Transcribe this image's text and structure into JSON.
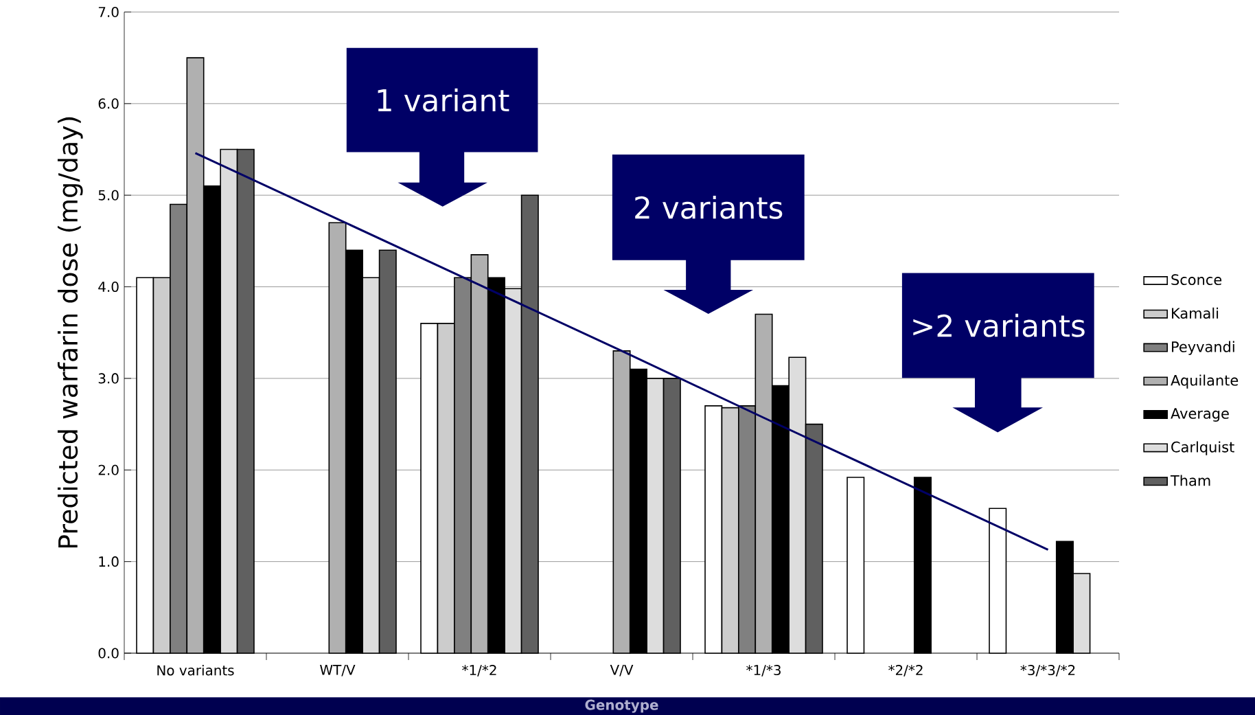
{
  "chart_data": {
    "type": "bar",
    "xlabel": "Genotype",
    "ylabel": "Predicted warfarin dose (mg/day)",
    "categories": [
      "No variants",
      "WT/V",
      "*1/*2",
      "V/V",
      "*1/*3",
      "*2/*2",
      "*3/*3/*2"
    ],
    "series": [
      {
        "name": "Sconce",
        "color": "#ffffff",
        "values": [
          4.1,
          null,
          3.6,
          null,
          2.7,
          1.92,
          1.58
        ]
      },
      {
        "name": "Kamali",
        "color": "#cccccc",
        "values": [
          4.1,
          null,
          3.6,
          null,
          2.68,
          null,
          null
        ]
      },
      {
        "name": "Peyvandi",
        "color": "#808080",
        "values": [
          4.9,
          null,
          4.1,
          null,
          2.7,
          null,
          null
        ]
      },
      {
        "name": "Aquilante",
        "color": "#b0b0b0",
        "values": [
          6.5,
          4.7,
          4.35,
          3.3,
          3.7,
          null,
          null
        ]
      },
      {
        "name": "Average",
        "color": "#000000",
        "values": [
          5.1,
          4.4,
          4.1,
          3.1,
          2.92,
          1.92,
          1.22
        ]
      },
      {
        "name": "Carlquist",
        "color": "#dddddd",
        "values": [
          5.5,
          4.1,
          3.98,
          3.0,
          3.23,
          null,
          0.87
        ]
      },
      {
        "name": "Tham",
        "color": "#606060",
        "values": [
          5.5,
          4.4,
          5.0,
          3.0,
          2.5,
          null,
          null
        ]
      },
      {
        "type": "line",
        "color": "#000066",
        "values": [
          5.46,
          4.74,
          4.02,
          3.3,
          2.57,
          1.85,
          1.13
        ]
      }
    ],
    "ylim": [
      0,
      7
    ],
    "yticks": [
      {
        "value": 0,
        "label": "0.0"
      },
      {
        "value": 1,
        "label": "1.0"
      },
      {
        "value": 2,
        "label": "2.0"
      },
      {
        "value": 3,
        "label": "3.0"
      },
      {
        "value": 4,
        "label": "4.0"
      },
      {
        "value": 5,
        "label": "5.0"
      },
      {
        "value": 6,
        "label": "6.0"
      },
      {
        "value": 7,
        "label": "7.0"
      }
    ],
    "grid": "y",
    "legend": "right",
    "annotations": [
      "1 variant",
      "2 variants",
      ">2 variants"
    ]
  }
}
